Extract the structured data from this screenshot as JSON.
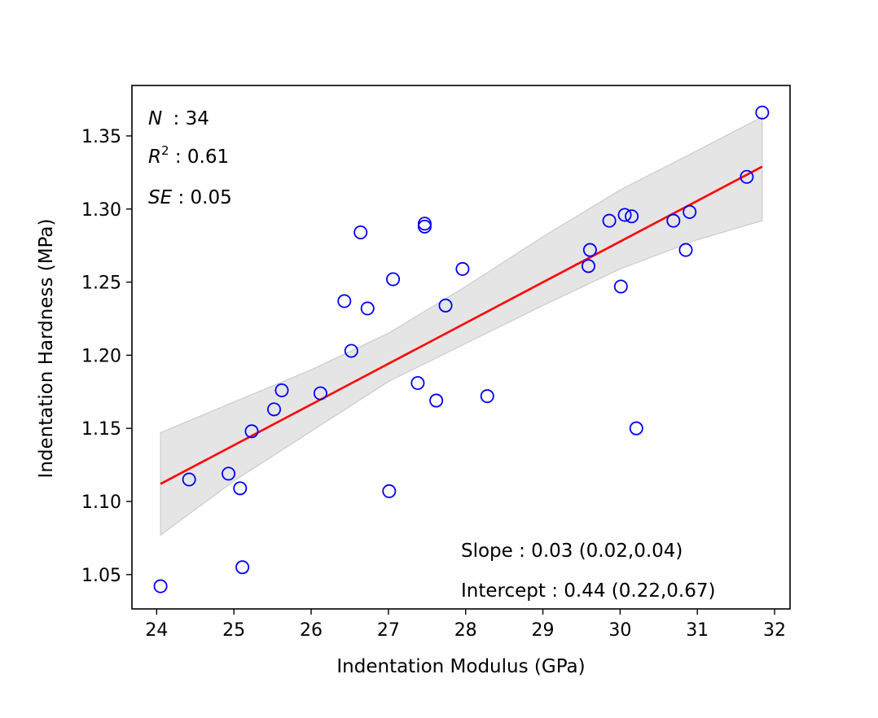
{
  "chart_data": {
    "type": "scatter",
    "xlabel": "Indentation Modulus (GPa)",
    "ylabel": "Indentation Hardness (MPa)",
    "xlim": [
      23.68,
      32.2
    ],
    "ylim": [
      1.0265,
      1.3845
    ],
    "xticks": [
      24,
      25,
      26,
      27,
      28,
      29,
      30,
      31,
      32
    ],
    "yticks": [
      1.05,
      1.1,
      1.15,
      1.2,
      1.25,
      1.3,
      1.35
    ],
    "xtick_labels": [
      "24",
      "25",
      "26",
      "27",
      "28",
      "29",
      "30",
      "31",
      "32"
    ],
    "ytick_labels": [
      "1.05",
      "1.10",
      "1.15",
      "1.20",
      "1.25",
      "1.30",
      "1.35"
    ],
    "grid": false,
    "colors": {
      "points": "#0000ff",
      "fit_line": "#ff0000",
      "confidence_band": "#e5e5e5",
      "confidence_band_edge": "#cccccc"
    },
    "points": [
      {
        "x": 24.05,
        "y": 1.042
      },
      {
        "x": 24.42,
        "y": 1.115
      },
      {
        "x": 24.93,
        "y": 1.119
      },
      {
        "x": 25.08,
        "y": 1.109
      },
      {
        "x": 25.11,
        "y": 1.055
      },
      {
        "x": 25.23,
        "y": 1.148
      },
      {
        "x": 25.52,
        "y": 1.163
      },
      {
        "x": 25.62,
        "y": 1.176
      },
      {
        "x": 26.12,
        "y": 1.174
      },
      {
        "x": 26.43,
        "y": 1.237
      },
      {
        "x": 26.52,
        "y": 1.203
      },
      {
        "x": 26.64,
        "y": 1.284
      },
      {
        "x": 26.73,
        "y": 1.232
      },
      {
        "x": 27.01,
        "y": 1.107
      },
      {
        "x": 27.06,
        "y": 1.252
      },
      {
        "x": 27.38,
        "y": 1.181
      },
      {
        "x": 27.47,
        "y": 1.29
      },
      {
        "x": 27.47,
        "y": 1.288
      },
      {
        "x": 27.62,
        "y": 1.169
      },
      {
        "x": 27.74,
        "y": 1.234
      },
      {
        "x": 27.96,
        "y": 1.259
      },
      {
        "x": 28.28,
        "y": 1.172
      },
      {
        "x": 29.59,
        "y": 1.261
      },
      {
        "x": 29.61,
        "y": 1.272
      },
      {
        "x": 29.86,
        "y": 1.292
      },
      {
        "x": 30.01,
        "y": 1.247
      },
      {
        "x": 30.06,
        "y": 1.296
      },
      {
        "x": 30.15,
        "y": 1.295
      },
      {
        "x": 30.21,
        "y": 1.15
      },
      {
        "x": 30.69,
        "y": 1.292
      },
      {
        "x": 30.85,
        "y": 1.272
      },
      {
        "x": 30.9,
        "y": 1.298
      },
      {
        "x": 31.64,
        "y": 1.322
      },
      {
        "x": 31.84,
        "y": 1.366
      }
    ],
    "fit_line": {
      "x": [
        24.05,
        31.84
      ],
      "y": [
        1.112,
        1.329
      ]
    },
    "confidence_band": {
      "x": [
        24.05,
        25.0,
        26.0,
        27.0,
        28.0,
        29.0,
        30.0,
        31.0,
        31.84
      ],
      "upper": [
        1.147,
        1.168,
        1.19,
        1.215,
        1.247,
        1.281,
        1.313,
        1.34,
        1.363
      ],
      "lower": [
        1.077,
        1.114,
        1.148,
        1.182,
        1.208,
        1.234,
        1.259,
        1.279,
        1.292
      ]
    },
    "annotations": {
      "n": {
        "symbol": "N",
        "value": " : 34"
      },
      "r2": {
        "symbol": "R",
        "superscript": "2",
        "value": " : 0.61"
      },
      "se": {
        "symbol": "SE",
        "value": " : 0.05"
      },
      "slope": "Slope : 0.03 (0.02,0.04)",
      "intercept": "Intercept : 0.44 (0.22,0.67)"
    }
  }
}
